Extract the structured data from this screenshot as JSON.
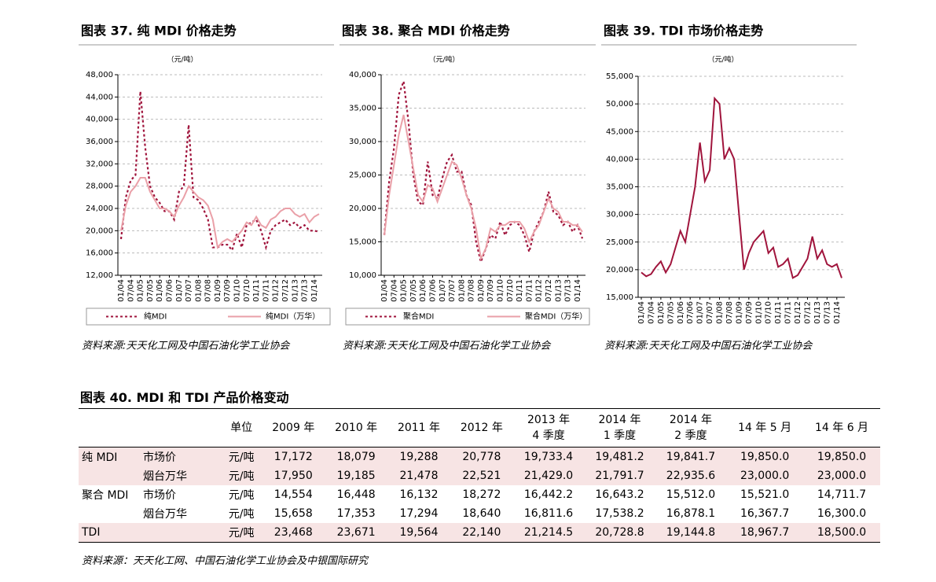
{
  "chart_data": [
    {
      "type": "line",
      "title": "图表 37. 纯 MDI 价格走势",
      "y_unit": "（元/吨）",
      "source": "资料来源:天天化工网及中国石油化学工业协会",
      "grid": true,
      "legend": "bottom",
      "categories": [
        "01/04",
        null,
        "07/04",
        null,
        "01/05",
        null,
        "07/05",
        null,
        "01/06",
        null,
        "07/06",
        null,
        "01/07",
        null,
        "07/07",
        null,
        "01/08",
        null,
        "07/08",
        null,
        "01/09",
        null,
        "07/09",
        null,
        "01/10",
        null,
        "07/10",
        null,
        "01/11",
        null,
        "07/11",
        null,
        "01/12",
        null,
        "07/12",
        null,
        "01/13",
        null,
        "07/13",
        null,
        "01/14",
        null
      ],
      "ylim": [
        12000,
        48000
      ],
      "yticks": [
        {
          "value": 12000,
          "label": "12,000"
        },
        {
          "value": 16000,
          "label": "16,000"
        },
        {
          "value": 20000,
          "label": "20,000"
        },
        {
          "value": 24000,
          "label": "24,000"
        },
        {
          "value": 28000,
          "label": "28,000"
        },
        {
          "value": 32000,
          "label": "32,000"
        },
        {
          "value": 36000,
          "label": "36,000"
        },
        {
          "value": 40000,
          "label": "40,000"
        },
        {
          "value": 44000,
          "label": "44,000"
        },
        {
          "value": 48000,
          "label": "48,000"
        }
      ],
      "series": [
        {
          "name": "纯MDI",
          "color": "#a0143c",
          "line_style": "dotted",
          "values": [
            18500,
            26000,
            29000,
            30000,
            45000,
            35000,
            28000,
            26000,
            25000,
            23500,
            23500,
            22000,
            27000,
            28000,
            39000,
            26000,
            25500,
            24000,
            22000,
            17000,
            17000,
            17500,
            17500,
            16500,
            19500,
            17000,
            21000,
            21500,
            22000,
            20000,
            17000,
            20000,
            21000,
            21500,
            22000,
            21000,
            21500,
            20500,
            21000,
            20000,
            20000,
            19800
          ]
        },
        {
          "name": "纯MDI（万华）",
          "color": "#eaa0a8",
          "line_style": "solid",
          "values": [
            20000,
            24500,
            27000,
            28000,
            29500,
            29500,
            27000,
            25500,
            24000,
            24000,
            23500,
            22500,
            24500,
            26000,
            28000,
            27000,
            26000,
            25500,
            24500,
            22000,
            17000,
            18000,
            18500,
            18000,
            19000,
            20000,
            21500,
            21000,
            22500,
            21000,
            20500,
            22000,
            22500,
            23500,
            24000,
            24000,
            23000,
            22500,
            23000,
            21500,
            22500,
            23000
          ]
        }
      ]
    },
    {
      "type": "line",
      "title": "图表 38. 聚合 MDI 价格走势",
      "y_unit": "（元/吨）",
      "source": "资料来源:天天化工网及中国石油化学工业协会",
      "grid": true,
      "legend": "bottom",
      "categories": [
        "01/04",
        null,
        "07/04",
        null,
        "01/05",
        null,
        "07/05",
        null,
        "01/06",
        null,
        "07/06",
        null,
        "01/07",
        null,
        "07/07",
        null,
        "01/08",
        null,
        "07/08",
        null,
        "01/09",
        null,
        "07/09",
        null,
        "01/10",
        null,
        "07/10",
        null,
        "01/11",
        null,
        "07/11",
        null,
        "01/12",
        null,
        "07/12",
        null,
        "01/13",
        null,
        "07/13",
        null,
        "01/14",
        null
      ],
      "ylim": [
        10000,
        40000
      ],
      "yticks": [
        {
          "value": 10000,
          "label": "10,000"
        },
        {
          "value": 15000,
          "label": "15,000"
        },
        {
          "value": 20000,
          "label": "20,000"
        },
        {
          "value": 25000,
          "label": "25,000"
        },
        {
          "value": 30000,
          "label": "30,000"
        },
        {
          "value": 35000,
          "label": "35,000"
        },
        {
          "value": 40000,
          "label": "40,000"
        }
      ],
      "series": [
        {
          "name": "聚合MDI",
          "color": "#a0143c",
          "line_style": "dotted",
          "values": [
            16000,
            24000,
            29000,
            37000,
            39000,
            33000,
            25000,
            21000,
            20500,
            27000,
            22000,
            21500,
            24500,
            27000,
            28000,
            25500,
            25500,
            22000,
            20500,
            15000,
            12000,
            14000,
            16000,
            15500,
            18000,
            16000,
            17500,
            18000,
            17500,
            16000,
            13500,
            16500,
            18000,
            19500,
            22500,
            19500,
            19000,
            17500,
            18000,
            16500,
            17500,
            15500
          ]
        },
        {
          "name": "聚合MDI（万华）",
          "color": "#eaa0a8",
          "line_style": "solid",
          "values": [
            16000,
            22000,
            26500,
            31000,
            34000,
            30000,
            26000,
            22000,
            21000,
            23500,
            23000,
            21000,
            23000,
            25000,
            27000,
            26500,
            24500,
            22000,
            20000,
            17000,
            12500,
            14000,
            17000,
            16500,
            17500,
            17500,
            18000,
            18000,
            18000,
            17000,
            15000,
            16500,
            17500,
            19500,
            21500,
            20000,
            19500,
            18000,
            18000,
            17500,
            17500,
            16500
          ]
        }
      ]
    },
    {
      "type": "line",
      "title": "图表 39. TDI 市场价格走势",
      "y_unit": "（元/吨）",
      "source": "资料来源:天天化工网及中国石油化学工业协会",
      "grid": true,
      "categories": [
        "01/04",
        null,
        "07/04",
        null,
        "01/05",
        null,
        "07/05",
        null,
        "01/06",
        null,
        "07/06",
        null,
        "01/07",
        null,
        "07/07",
        null,
        "01/08",
        null,
        "07/08",
        null,
        "01/09",
        null,
        "07/09",
        null,
        "01/10",
        null,
        "07/10",
        null,
        "01/11",
        null,
        "07/11",
        null,
        "01/12",
        null,
        "07/12",
        null,
        "01/13",
        null,
        "07/13",
        null,
        "01/14",
        null
      ],
      "ylim": [
        15000,
        55000
      ],
      "yticks": [
        {
          "value": 15000,
          "label": "15,000"
        },
        {
          "value": 20000,
          "label": "20,000"
        },
        {
          "value": 25000,
          "label": "25,000"
        },
        {
          "value": 30000,
          "label": "30,000"
        },
        {
          "value": 35000,
          "label": "35,000"
        },
        {
          "value": 40000,
          "label": "40,000"
        },
        {
          "value": 45000,
          "label": "45,000"
        },
        {
          "value": 50000,
          "label": "50,000"
        },
        {
          "value": 55000,
          "label": "55,000"
        }
      ],
      "series": [
        {
          "color": "#a0143c",
          "line_style": "solid",
          "values": [
            19500,
            18800,
            19200,
            20500,
            21500,
            19500,
            21000,
            24000,
            27000,
            25000,
            30000,
            35000,
            43000,
            36000,
            38000,
            51000,
            50000,
            40000,
            42000,
            40000,
            30000,
            20000,
            23000,
            25000,
            26000,
            27000,
            23000,
            24000,
            20500,
            21000,
            22000,
            18500,
            19000,
            20500,
            22000,
            26000,
            22000,
            23500,
            21000,
            20500,
            21000,
            18500
          ]
        }
      ]
    }
  ],
  "table": {
    "title": "图表 40. MDI 和 TDI 产品价格变动",
    "columns": [
      "单位",
      "2009 年",
      "2010 年",
      "2011 年",
      "2012 年",
      [
        "2013 年",
        "4 季度"
      ],
      [
        "2014 年",
        "1 季度"
      ],
      [
        "2014 年",
        "2 季度"
      ],
      "14 年 5 月",
      "14 年 6 月"
    ],
    "rows": [
      {
        "group": "纯 MDI",
        "item": "市场价",
        "unit": "元/吨",
        "shaded": true,
        "values": [
          "17,172",
          "18,079",
          "19,288",
          "20,778",
          "19,733.4",
          "19,481.2",
          "19,841.7",
          "19,850.0",
          "19,850.0"
        ]
      },
      {
        "item": "烟台万华",
        "unit": "元/吨",
        "shaded": true,
        "values": [
          "17,950",
          "19,185",
          "21,478",
          "22,521",
          "21,429.0",
          "21,791.7",
          "22,935.6",
          "23,000.0",
          "23,000.0"
        ]
      },
      {
        "group": "聚合 MDI",
        "item": "市场价",
        "unit": "元/吨",
        "shaded": false,
        "values": [
          "14,554",
          "16,448",
          "16,132",
          "18,272",
          "16,442.2",
          "16,643.2",
          "15,512.0",
          "15,521.0",
          "14,711.7"
        ]
      },
      {
        "item": "烟台万华",
        "unit": "元/吨",
        "shaded": false,
        "values": [
          "15,658",
          "17,353",
          "17,294",
          "18,640",
          "16,811.6",
          "17,538.2",
          "16,878.1",
          "16,367.7",
          "16,300.0"
        ]
      },
      {
        "group": "TDI",
        "unit": "元/吨",
        "shaded": true,
        "values": [
          "23,468",
          "23,671",
          "19,564",
          "22,140",
          "21,214.5",
          "20,728.8",
          "19,144.8",
          "18,967.7",
          "18,500.0"
        ]
      }
    ],
    "source": "资料来源：天天化工网、中国石油化学工业协会及中银国际研究"
  }
}
